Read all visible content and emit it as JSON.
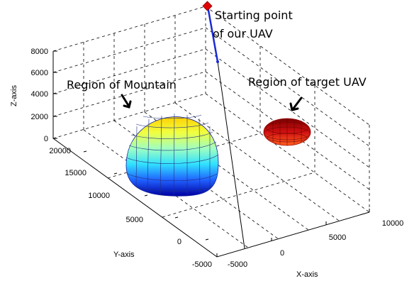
{
  "chart_data": {
    "type": "surface3d",
    "xlabel": "X-axis",
    "ylabel": "Y-axis",
    "zlabel": "Z-axis",
    "xlim": [
      -5000,
      10000
    ],
    "ylim": [
      -5000,
      20000
    ],
    "zlim": [
      0,
      8000
    ],
    "xticks": [
      "-5000",
      "0",
      "5000",
      "10000"
    ],
    "yticks": [
      "-5000",
      "0",
      "5000",
      "10000",
      "15000",
      "20000"
    ],
    "zticks": [
      "0",
      "2000",
      "4000",
      "6000",
      "8000"
    ],
    "grid": true,
    "annotations": [
      {
        "text": "Starting point",
        "key": "start1"
      },
      {
        "text": "of our UAV",
        "key": "start2"
      },
      {
        "text": "Region of Mountain",
        "key": "mountain"
      },
      {
        "text": "Region of target UAV",
        "key": "target"
      }
    ],
    "objects": [
      {
        "name": "mountain",
        "shape": "hemisphere",
        "colormap": "jet"
      },
      {
        "name": "target UAV region",
        "shape": "ellipsoid",
        "color": "#cc1010"
      },
      {
        "name": "UAV path",
        "color": "#1a2bd6"
      }
    ]
  }
}
